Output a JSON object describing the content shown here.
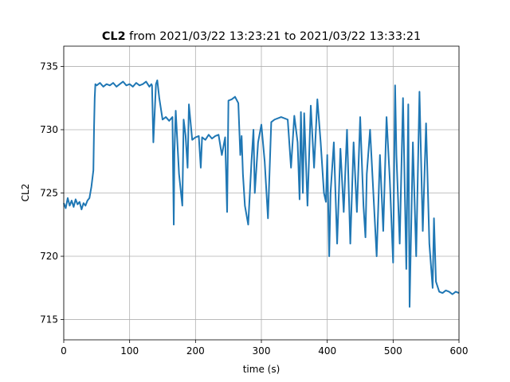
{
  "chart_data": {
    "type": "line",
    "title": {
      "bold": "CL2",
      "rest": " from 2021/03/22 13:23:21 to 2021/03/22 13:33:21"
    },
    "xlabel": "time (s)",
    "ylabel": "CL2",
    "xlim": [
      0,
      600
    ],
    "ylim": [
      713.4,
      736.6
    ],
    "xticks": [
      0,
      100,
      200,
      300,
      400,
      500,
      600
    ],
    "yticks": [
      715,
      720,
      725,
      730,
      735
    ],
    "grid": true,
    "legend": "none",
    "series": [
      {
        "color": "#1f77b4",
        "x": [
          0,
          3,
          6,
          9,
          12,
          15,
          18,
          21,
          24,
          27,
          30,
          33,
          36,
          39,
          42,
          45,
          46,
          47,
          48,
          50,
          55,
          60,
          65,
          70,
          75,
          80,
          85,
          90,
          95,
          100,
          105,
          110,
          115,
          120,
          125,
          130,
          133,
          134,
          135,
          136,
          140,
          142,
          145,
          150,
          155,
          160,
          165,
          167,
          168,
          170,
          175,
          178,
          180,
          182,
          185,
          188,
          190,
          195,
          200,
          205,
          208,
          210,
          215,
          220,
          225,
          230,
          235,
          240,
          245,
          248,
          250,
          255,
          260,
          265,
          268,
          270,
          272,
          275,
          280,
          285,
          288,
          290,
          295,
          300,
          305,
          310,
          315,
          320,
          330,
          340,
          345,
          350,
          355,
          358,
          360,
          363,
          365,
          370,
          375,
          380,
          385,
          390,
          395,
          398,
          400,
          403,
          405,
          410,
          415,
          420,
          425,
          430,
          435,
          440,
          445,
          450,
          455,
          458,
          460,
          465,
          470,
          475,
          480,
          485,
          490,
          495,
          500,
          503,
          505,
          510,
          515,
          520,
          523,
          525,
          530,
          535,
          540,
          545,
          550,
          555,
          560,
          562,
          565,
          570,
          575,
          580,
          585,
          590,
          595,
          600
        ],
        "y": [
          724.2,
          723.8,
          724.6,
          724.0,
          724.4,
          723.9,
          724.5,
          724.1,
          724.3,
          723.7,
          724.2,
          724.0,
          724.4,
          724.6,
          725.5,
          726.8,
          730.2,
          732.5,
          733.6,
          733.5,
          733.7,
          733.4,
          733.6,
          733.5,
          733.7,
          733.4,
          733.6,
          733.8,
          733.5,
          733.6,
          733.4,
          733.7,
          733.5,
          733.6,
          733.8,
          733.4,
          733.6,
          733.5,
          731.2,
          729.0,
          733.6,
          733.9,
          732.5,
          730.8,
          731.0,
          730.7,
          731.0,
          722.5,
          728.2,
          731.5,
          726.5,
          725.0,
          724.0,
          730.8,
          729.5,
          727.0,
          732.0,
          729.2,
          729.4,
          729.5,
          727.0,
          729.4,
          729.2,
          729.6,
          729.3,
          729.5,
          729.6,
          728.0,
          729.4,
          723.5,
          732.3,
          732.4,
          732.6,
          732.1,
          728.0,
          729.5,
          726.5,
          724.0,
          722.5,
          727.5,
          730.0,
          725.0,
          729.0,
          730.4,
          727.5,
          723.0,
          730.6,
          730.8,
          731.0,
          730.8,
          727.0,
          731.1,
          729.0,
          724.5,
          731.4,
          725.0,
          731.3,
          724.0,
          731.9,
          727.0,
          732.4,
          729.0,
          725.0,
          724.3,
          728.0,
          720.0,
          725.0,
          729.0,
          721.0,
          728.5,
          723.5,
          730.0,
          721.0,
          729.0,
          723.5,
          731.0,
          724.0,
          721.5,
          726.5,
          730.0,
          725.0,
          720.0,
          728.0,
          722.0,
          731.0,
          726.0,
          719.5,
          733.5,
          728.0,
          721.0,
          732.5,
          719.0,
          732.0,
          716.0,
          729.0,
          720.0,
          733.0,
          722.0,
          730.5,
          721.0,
          717.5,
          723.0,
          718.0,
          717.2,
          717.1,
          717.3,
          717.2,
          717.0,
          717.2,
          717.1
        ]
      }
    ]
  }
}
